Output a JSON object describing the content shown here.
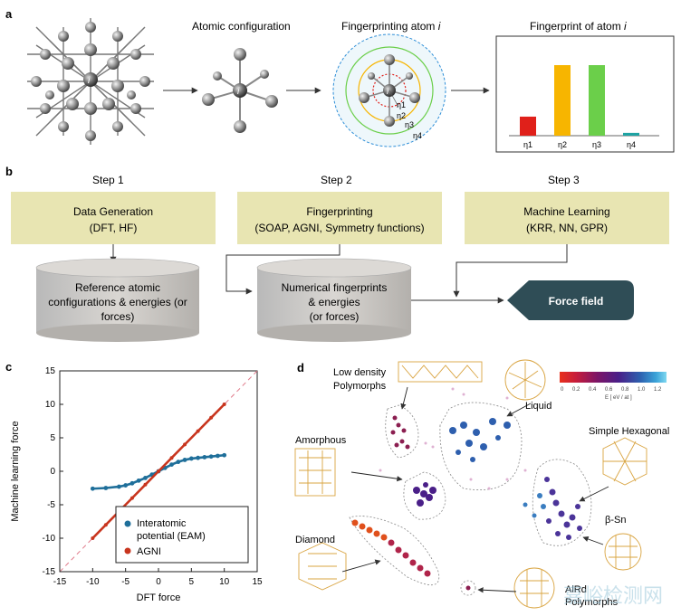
{
  "panels": {
    "a": "a",
    "b": "b",
    "c": "c",
    "d": "d"
  },
  "panel_a": {
    "atomic_configuration": "Atomic configuration",
    "fingerprinting_title": "Fingerprinting atom ",
    "fingerprinting_italic": "i",
    "fingerprint_title": "Fingerprint of atom ",
    "fingerprint_italic": "i",
    "atom_label": "i",
    "eta_labels": [
      "η1",
      "η2",
      "η3",
      "η4"
    ],
    "colors": {
      "red": "#e0201a",
      "orange": "#f7b500",
      "green": "#6bcf4a",
      "teal": "#1fa3a3"
    }
  },
  "chart_fingerprint": {
    "type": "bar",
    "categories": [
      "η1",
      "η2",
      "η3",
      "η4"
    ],
    "values": [
      0.27,
      1.0,
      1.0,
      0.04
    ],
    "colors": [
      "#e0201a",
      "#f7b500",
      "#6bcf4a",
      "#1fa3a3"
    ]
  },
  "panel_b": {
    "steps": [
      {
        "label": "Step 1",
        "title": "Data Generation",
        "detail": "(DFT, HF)"
      },
      {
        "label": "Step 2",
        "title": "Fingerprinting",
        "detail": "(SOAP, AGNI, Symmetry functions)"
      },
      {
        "label": "Step 3",
        "title": "Machine Learning",
        "detail": "(KRR, NN, GPR)"
      }
    ],
    "db1": [
      "Reference atomic",
      "configurations  & energies (or",
      "forces)"
    ],
    "db2": [
      "Numerical fingerprints",
      "& energies",
      "(or forces)"
    ],
    "output": "Force field"
  },
  "chart_data": {
    "type": "scatter",
    "xlabel": "DFT force",
    "ylabel": "Machine learning force",
    "xlim": [
      -15,
      15
    ],
    "ylim": [
      -15,
      15
    ],
    "xticks": [
      "-15",
      "-10",
      "-5",
      "0",
      "5",
      "10",
      "15"
    ],
    "yticks": [
      "15",
      "10",
      "5",
      "0",
      "-5",
      "-10",
      "-15"
    ],
    "legend": "bottom-right",
    "series": [
      {
        "name": "Interatomic potential (EAM)",
        "color": "#1f6f9a",
        "x": [
          -10,
          -8,
          -6,
          -5,
          -4,
          -3,
          -2,
          -1,
          0,
          1,
          2,
          3,
          4,
          5,
          6,
          7,
          8,
          9,
          10
        ],
        "y": [
          -2.6,
          -2.5,
          -2.3,
          -2.1,
          -1.8,
          -1.4,
          -1.0,
          -0.5,
          0,
          0.5,
          1.0,
          1.4,
          1.7,
          1.9,
          2.0,
          2.1,
          2.2,
          2.3,
          2.4
        ]
      },
      {
        "name": "AGNI",
        "color": "#c8351e",
        "x": [
          -10,
          -8,
          -6,
          -4,
          -2,
          0,
          2,
          4,
          6,
          8,
          10
        ],
        "y": [
          -10,
          -8,
          -6,
          -4,
          -2,
          0,
          2,
          4,
          6,
          8,
          10
        ]
      }
    ],
    "legend_lines": [
      "Interatomic",
      "potential (EAM)",
      "AGNI"
    ]
  },
  "panel_d": {
    "labels": {
      "low_density": [
        "Low density",
        "Polymorphs"
      ],
      "liquid": "Liquid",
      "amorphous": "Amorphous",
      "simple_hexagonal": "Simple Hexagonal",
      "beta_sn": "β-Sn",
      "diamond": "Diamond",
      "alr": [
        "AlRd",
        "Polymorphs"
      ]
    },
    "colorbar": {
      "ticks": [
        "0",
        "0.2",
        "0.4",
        "0.6",
        "0.8",
        "1.0",
        "1.2"
      ],
      "label": "E [ eV / at ]"
    },
    "watermark": "嘉峪检测网"
  }
}
